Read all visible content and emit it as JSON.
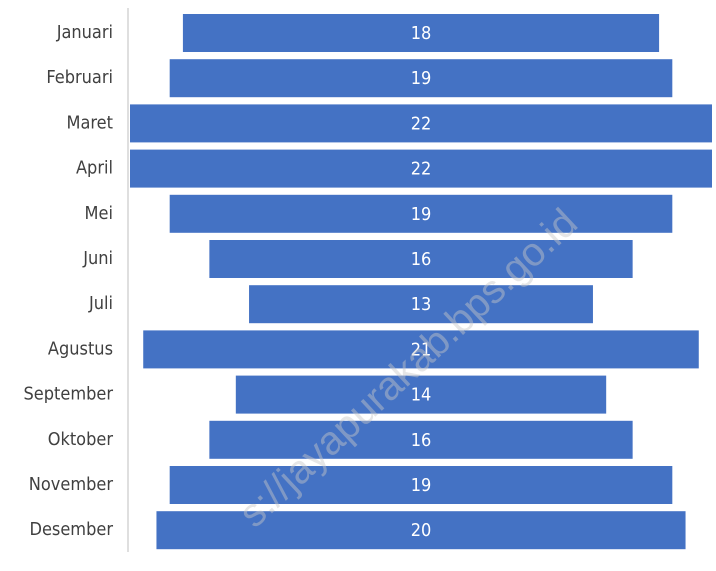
{
  "chart_data": {
    "type": "funnel",
    "categories": [
      "Januari",
      "Februari",
      "Maret",
      "April",
      "Mei",
      "Juni",
      "Juli",
      "Agustus",
      "September",
      "Oktober",
      "November",
      "Desember"
    ],
    "values": [
      18,
      19,
      22,
      22,
      19,
      16,
      13,
      21,
      14,
      16,
      19,
      20
    ],
    "color": "#4472c4",
    "watermark": "s://jayapurakab.bps.go.id"
  }
}
